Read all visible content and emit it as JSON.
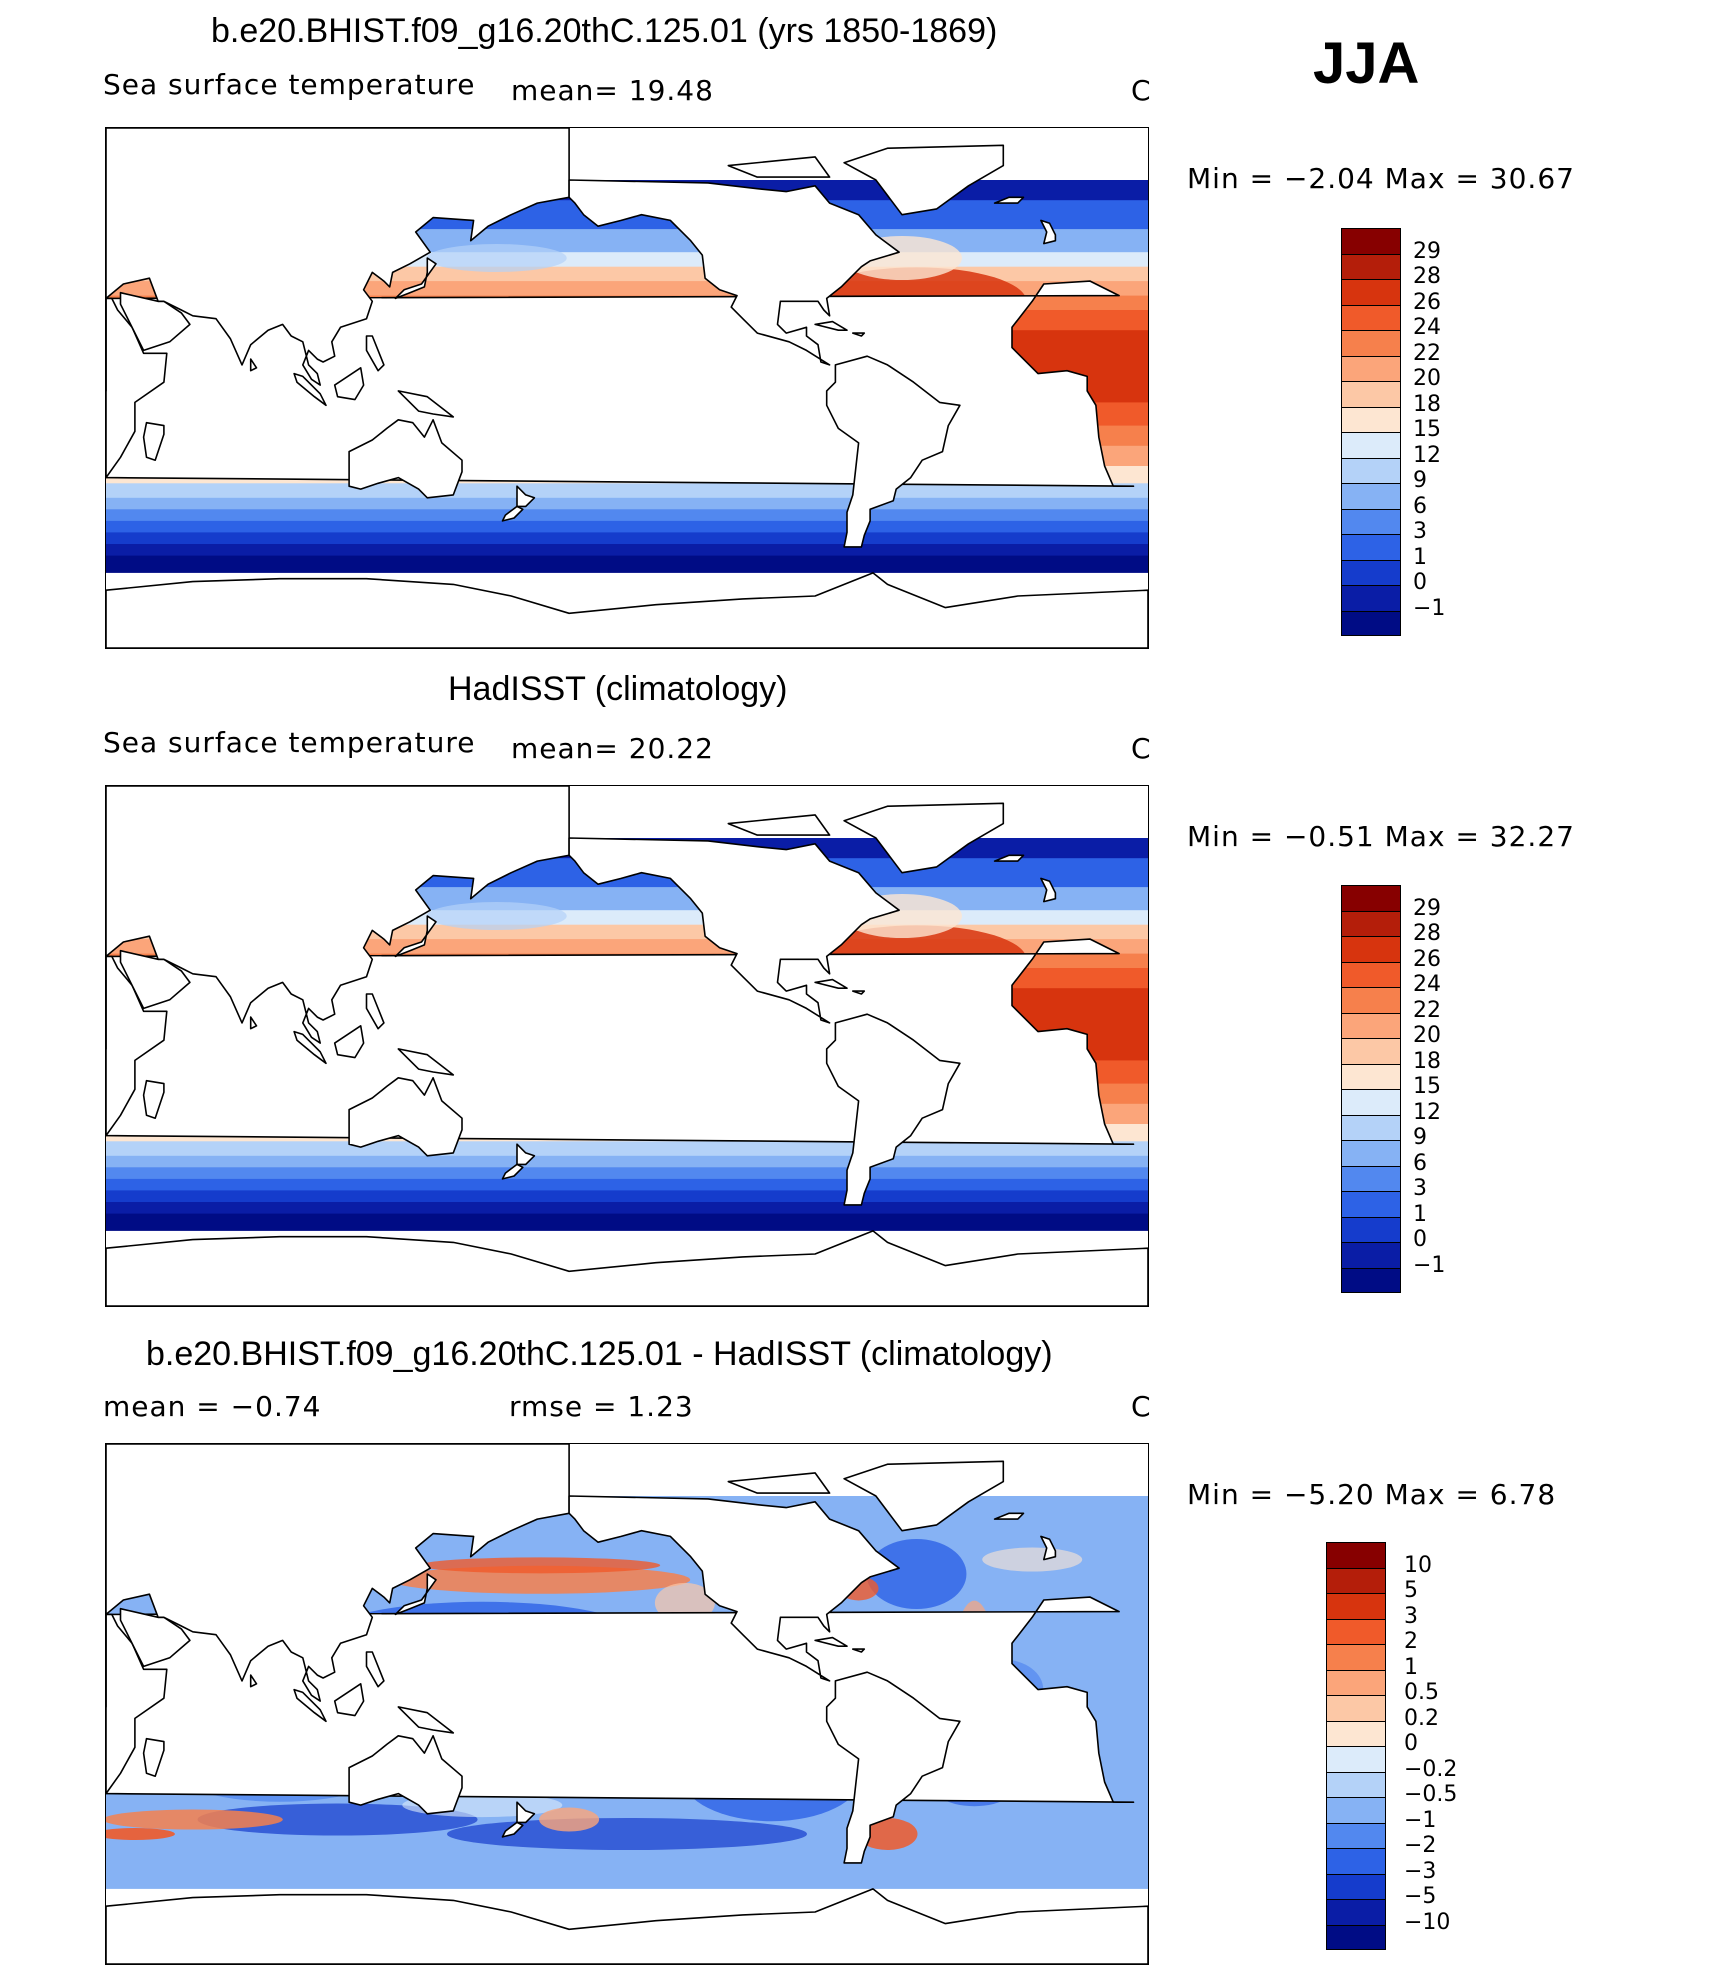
{
  "season_label": "JJA",
  "panels": [
    {
      "title": "b.e20.BHIST.f09_g16.20thC.125.01 (yrs 1850-1869)",
      "left_label": "Sea surface temperature",
      "mid_label": "mean=   19.48",
      "units": "C",
      "minmax": "Min =   −2.04 Max =    30.67",
      "levels": [
        "29",
        "28",
        "26",
        "24",
        "22",
        "20",
        "18",
        "15",
        "12",
        "9",
        "6",
        "3",
        "1",
        "0",
        "−1"
      ],
      "colors": [
        "#870000",
        "#b41e0a",
        "#d7340e",
        "#f05a2a",
        "#f6804c",
        "#fba57a",
        "#fcc8a6",
        "#fde6d2",
        "#dcebfa",
        "#b4d2f8",
        "#86b2f4",
        "#5288ef",
        "#2d62e6",
        "#153ccc",
        "#0a1da6",
        "#000c85"
      ],
      "diff": false
    },
    {
      "title": "HadISST (climatology)",
      "left_label": "Sea surface temperature",
      "mid_label": "mean=   20.22",
      "units": "C",
      "minmax": "Min =   −0.51 Max =    32.27",
      "levels": [
        "29",
        "28",
        "26",
        "24",
        "22",
        "20",
        "18",
        "15",
        "12",
        "9",
        "6",
        "3",
        "1",
        "0",
        "−1"
      ],
      "colors": [
        "#870000",
        "#b41e0a",
        "#d7340e",
        "#f05a2a",
        "#f6804c",
        "#fba57a",
        "#fcc8a6",
        "#fde6d2",
        "#dcebfa",
        "#b4d2f8",
        "#86b2f4",
        "#5288ef",
        "#2d62e6",
        "#153ccc",
        "#0a1da6",
        "#000c85"
      ],
      "diff": false
    },
    {
      "title": "b.e20.BHIST.f09_g16.20thC.125.01 - HadISST (climatology)",
      "left_label": "mean  =   −0.74",
      "mid_label": "rmse  =    1.23",
      "units": "C",
      "minmax": "Min =   −5.20 Max =     6.78",
      "levels": [
        "10",
        "5",
        "3",
        "2",
        "1",
        "0.5",
        "0.2",
        "0",
        "−0.2",
        "−0.5",
        "−1",
        "−2",
        "−3",
        "−5",
        "−10"
      ],
      "colors": [
        "#870000",
        "#b41e0a",
        "#d7340e",
        "#f05a2a",
        "#f6804c",
        "#fba57a",
        "#fcc8a6",
        "#fde6d2",
        "#dcebfa",
        "#b4d2f8",
        "#86b2f4",
        "#5288ef",
        "#2d62e6",
        "#153ccc",
        "#0a1da6",
        "#000c85"
      ],
      "diff": true
    }
  ]
}
